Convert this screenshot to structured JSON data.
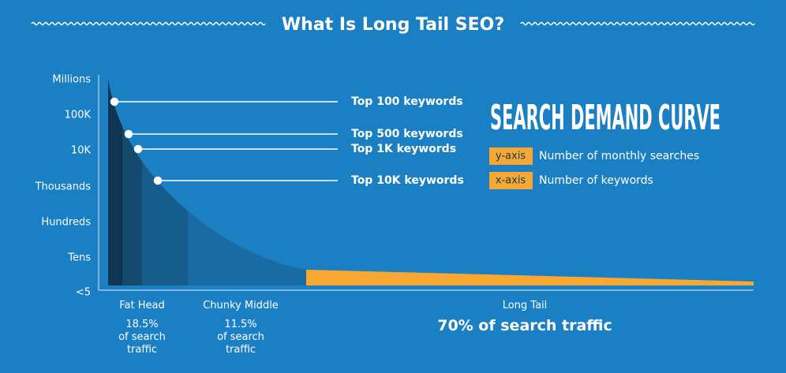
{
  "title": "What Is Long Tail SEO?",
  "y_axis_labels": [
    "Millions",
    "100K",
    "10K",
    "Thousands",
    "Hundreds",
    "Tens",
    "<5"
  ],
  "callouts": [
    "Top 100 keywords",
    "Top 500 keywords",
    "Top 1K keywords",
    "Top 10K keywords"
  ],
  "heading": "SEARCH DEMAND CURVE",
  "legend": [
    {
      "tag": "y-axis",
      "text": "Number of monthly searches"
    },
    {
      "tag": "x-axis",
      "text": "Number of keywords"
    }
  ],
  "segments": [
    {
      "name": "Fat Head",
      "share": "18.5%",
      "note": "of search traffic"
    },
    {
      "name": "Chunky Middle",
      "share": "11.5%",
      "note": "of search traffic"
    },
    {
      "name": "Long Tail",
      "share": "70% of search traffic"
    }
  ]
}
